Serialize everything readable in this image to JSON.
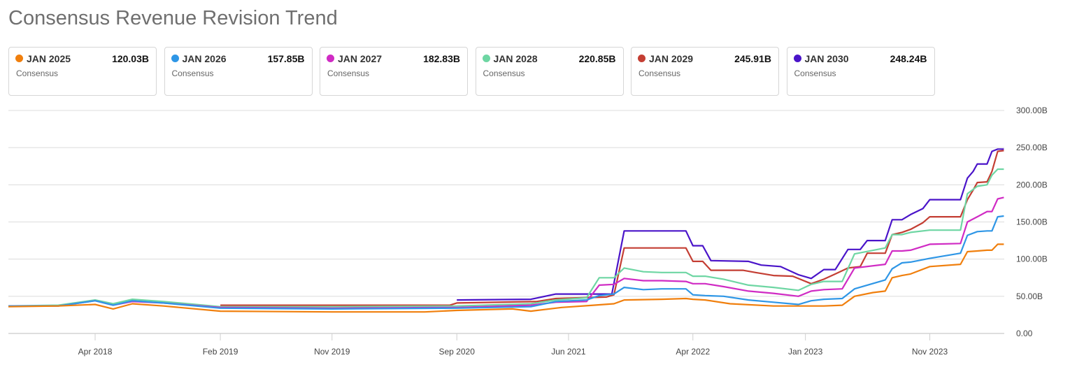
{
  "title": "Consensus Revenue Revision Trend",
  "legend": [
    {
      "name": "JAN 2025",
      "value": "120.03B",
      "sub": "Consensus",
      "color": "#f07f0d"
    },
    {
      "name": "JAN 2026",
      "value": "157.85B",
      "sub": "Consensus",
      "color": "#2e96e6"
    },
    {
      "name": "JAN 2027",
      "value": "182.83B",
      "sub": "Consensus",
      "color": "#d02bc4"
    },
    {
      "name": "JAN 2028",
      "value": "220.85B",
      "sub": "Consensus",
      "color": "#6ed6a3"
    },
    {
      "name": "JAN 2029",
      "value": "245.91B",
      "sub": "Consensus",
      "color": "#c43e33"
    },
    {
      "name": "JAN 2030",
      "value": "248.24B",
      "sub": "Consensus",
      "color": "#4a14c9"
    }
  ],
  "chart_data": {
    "type": "line",
    "title": "Consensus Revenue Revision Trend",
    "xlabel": "",
    "ylabel": "",
    "xlim": [
      "2017-09-01",
      "2024-05-01"
    ],
    "ylim": [
      0,
      300
    ],
    "y_unit": "B",
    "x_ticks": [
      {
        "date": "2018-04-01",
        "label": "Apr 2018"
      },
      {
        "date": "2019-02-01",
        "label": "Feb 2019"
      },
      {
        "date": "2019-11-01",
        "label": "Nov 2019"
      },
      {
        "date": "2020-09-01",
        "label": "Sep 2020"
      },
      {
        "date": "2021-06-01",
        "label": "Jun 2021"
      },
      {
        "date": "2022-04-01",
        "label": "Apr 2022"
      },
      {
        "date": "2023-01-01",
        "label": "Jan 2023"
      },
      {
        "date": "2023-11-01",
        "label": "Nov 2023"
      }
    ],
    "y_ticks": [
      {
        "value": 0,
        "label": "0.00"
      },
      {
        "value": 50,
        "label": "50.00B"
      },
      {
        "value": 100,
        "label": "100.00B"
      },
      {
        "value": 150,
        "label": "150.00B"
      },
      {
        "value": 200,
        "label": "200.00B"
      },
      {
        "value": 250,
        "label": "250.00B"
      },
      {
        "value": 300,
        "label": "300.00B"
      }
    ],
    "grid": true,
    "series": [
      {
        "name": "JAN 2030",
        "color": "#4a14c9",
        "points": [
          [
            "2020-09-01",
            45
          ],
          [
            "2021-03-01",
            46
          ],
          [
            "2021-05-01",
            53
          ],
          [
            "2021-08-01",
            53
          ],
          [
            "2021-09-15",
            53
          ],
          [
            "2021-10-15",
            138
          ],
          [
            "2022-03-15",
            138
          ],
          [
            "2022-04-01",
            118
          ],
          [
            "2022-04-25",
            118
          ],
          [
            "2022-05-15",
            98
          ],
          [
            "2022-08-15",
            97
          ],
          [
            "2022-09-15",
            92
          ],
          [
            "2022-11-01",
            90
          ],
          [
            "2022-12-15",
            79
          ],
          [
            "2023-01-15",
            74
          ],
          [
            "2023-02-15",
            86
          ],
          [
            "2023-03-15",
            86
          ],
          [
            "2023-04-15",
            113
          ],
          [
            "2023-05-15",
            113
          ],
          [
            "2023-06-01",
            125
          ],
          [
            "2023-07-15",
            125
          ],
          [
            "2023-08-01",
            153
          ],
          [
            "2023-08-25",
            153
          ],
          [
            "2023-09-15",
            160
          ],
          [
            "2023-10-15",
            168
          ],
          [
            "2023-11-01",
            180
          ],
          [
            "2024-01-15",
            180
          ],
          [
            "2024-02-01",
            209
          ],
          [
            "2024-02-15",
            218
          ],
          [
            "2024-02-25",
            228
          ],
          [
            "2024-03-20",
            228
          ],
          [
            "2024-04-01",
            245
          ],
          [
            "2024-04-15",
            248
          ],
          [
            "2024-04-30",
            248
          ]
        ]
      },
      {
        "name": "JAN 2029",
        "color": "#c43e33",
        "points": [
          [
            "2019-02-01",
            38
          ],
          [
            "2020-08-15",
            38
          ],
          [
            "2020-09-01",
            41
          ],
          [
            "2021-03-15",
            43
          ],
          [
            "2021-05-01",
            47
          ],
          [
            "2021-09-01",
            49
          ],
          [
            "2021-09-20",
            52
          ],
          [
            "2021-10-15",
            115
          ],
          [
            "2022-03-15",
            115
          ],
          [
            "2022-04-01",
            97
          ],
          [
            "2022-04-25",
            97
          ],
          [
            "2022-05-15",
            85
          ],
          [
            "2022-08-01",
            85
          ],
          [
            "2022-09-01",
            82
          ],
          [
            "2022-10-15",
            78
          ],
          [
            "2022-12-01",
            77
          ],
          [
            "2023-01-15",
            67
          ],
          [
            "2023-02-15",
            73
          ],
          [
            "2023-03-15",
            80
          ],
          [
            "2023-04-15",
            88
          ],
          [
            "2023-05-15",
            90
          ],
          [
            "2023-06-01",
            108
          ],
          [
            "2023-07-15",
            108
          ],
          [
            "2023-08-01",
            133
          ],
          [
            "2023-08-25",
            136
          ],
          [
            "2023-09-15",
            140
          ],
          [
            "2023-10-15",
            149
          ],
          [
            "2023-11-01",
            157
          ],
          [
            "2024-01-15",
            157
          ],
          [
            "2024-02-01",
            180
          ],
          [
            "2024-02-15",
            193
          ],
          [
            "2024-02-25",
            203
          ],
          [
            "2024-03-20",
            204
          ],
          [
            "2024-04-01",
            218
          ],
          [
            "2024-04-15",
            245
          ],
          [
            "2024-04-30",
            246
          ]
        ]
      },
      {
        "name": "JAN 2028",
        "color": "#6ed6a3",
        "points": [
          [
            "2017-09-01",
            37
          ],
          [
            "2018-01-01",
            38
          ],
          [
            "2018-04-01",
            45
          ],
          [
            "2018-05-15",
            40
          ],
          [
            "2018-07-01",
            46
          ],
          [
            "2018-09-15",
            43
          ],
          [
            "2019-02-01",
            36
          ],
          [
            "2019-11-01",
            36
          ],
          [
            "2020-09-01",
            37
          ],
          [
            "2021-03-01",
            40
          ],
          [
            "2021-05-01",
            45
          ],
          [
            "2021-07-15",
            48
          ],
          [
            "2021-08-15",
            75
          ],
          [
            "2021-09-20",
            75
          ],
          [
            "2021-10-15",
            88
          ],
          [
            "2021-12-01",
            83
          ],
          [
            "2022-01-15",
            82
          ],
          [
            "2022-03-15",
            82
          ],
          [
            "2022-04-01",
            77
          ],
          [
            "2022-05-01",
            77
          ],
          [
            "2022-06-15",
            73
          ],
          [
            "2022-08-15",
            65
          ],
          [
            "2022-10-15",
            62
          ],
          [
            "2022-12-15",
            58
          ],
          [
            "2023-01-15",
            66
          ],
          [
            "2023-02-15",
            70
          ],
          [
            "2023-04-01",
            70
          ],
          [
            "2023-05-01",
            107
          ],
          [
            "2023-07-15",
            115
          ],
          [
            "2023-08-01",
            133
          ],
          [
            "2023-08-25",
            133
          ],
          [
            "2023-09-15",
            136
          ],
          [
            "2023-11-01",
            139
          ],
          [
            "2024-01-15",
            139
          ],
          [
            "2024-02-01",
            188
          ],
          [
            "2024-02-25",
            198
          ],
          [
            "2024-03-20",
            200
          ],
          [
            "2024-04-01",
            213
          ],
          [
            "2024-04-15",
            221
          ],
          [
            "2024-04-30",
            221
          ]
        ]
      },
      {
        "name": "JAN 2027",
        "color": "#d02bc4",
        "points": [
          [
            "2017-09-01",
            37
          ],
          [
            "2018-01-01",
            37
          ],
          [
            "2018-04-01",
            44
          ],
          [
            "2018-05-15",
            38
          ],
          [
            "2018-07-01",
            43
          ],
          [
            "2018-09-15",
            41
          ],
          [
            "2019-02-01",
            35
          ],
          [
            "2019-11-01",
            34
          ],
          [
            "2020-09-01",
            35
          ],
          [
            "2021-03-01",
            38
          ],
          [
            "2021-05-01",
            42
          ],
          [
            "2021-07-15",
            43
          ],
          [
            "2021-08-15",
            65
          ],
          [
            "2021-09-20",
            66
          ],
          [
            "2021-10-15",
            74
          ],
          [
            "2021-12-01",
            71
          ],
          [
            "2022-01-15",
            71
          ],
          [
            "2022-03-15",
            70
          ],
          [
            "2022-04-01",
            67
          ],
          [
            "2022-05-01",
            67
          ],
          [
            "2022-06-15",
            63
          ],
          [
            "2022-08-15",
            57
          ],
          [
            "2022-10-15",
            54
          ],
          [
            "2022-12-15",
            50
          ],
          [
            "2023-01-15",
            57
          ],
          [
            "2023-02-15",
            59
          ],
          [
            "2023-04-01",
            60
          ],
          [
            "2023-05-01",
            88
          ],
          [
            "2023-07-15",
            93
          ],
          [
            "2023-08-01",
            111
          ],
          [
            "2023-08-25",
            111
          ],
          [
            "2023-09-15",
            112
          ],
          [
            "2023-11-01",
            120
          ],
          [
            "2024-01-15",
            121
          ],
          [
            "2024-02-01",
            150
          ],
          [
            "2024-02-25",
            157
          ],
          [
            "2024-03-20",
            164
          ],
          [
            "2024-04-01",
            164
          ],
          [
            "2024-04-15",
            181
          ],
          [
            "2024-04-30",
            183
          ]
        ]
      },
      {
        "name": "JAN 2026",
        "color": "#2e96e6",
        "points": [
          [
            "2017-09-01",
            37
          ],
          [
            "2018-01-01",
            37
          ],
          [
            "2018-04-01",
            44
          ],
          [
            "2018-05-15",
            38
          ],
          [
            "2018-07-01",
            44
          ],
          [
            "2018-09-15",
            41
          ],
          [
            "2019-02-01",
            34
          ],
          [
            "2019-11-01",
            33
          ],
          [
            "2020-09-01",
            34
          ],
          [
            "2021-03-01",
            36
          ],
          [
            "2021-05-01",
            43
          ],
          [
            "2021-07-15",
            45
          ],
          [
            "2021-08-15",
            51
          ],
          [
            "2021-09-20",
            53
          ],
          [
            "2021-10-15",
            62
          ],
          [
            "2021-12-01",
            59
          ],
          [
            "2022-01-15",
            60
          ],
          [
            "2022-03-15",
            60
          ],
          [
            "2022-04-01",
            52
          ],
          [
            "2022-05-01",
            51
          ],
          [
            "2022-06-15",
            50
          ],
          [
            "2022-08-15",
            45
          ],
          [
            "2022-10-15",
            42
          ],
          [
            "2022-12-15",
            39
          ],
          [
            "2023-01-15",
            44
          ],
          [
            "2023-02-15",
            46
          ],
          [
            "2023-04-01",
            47
          ],
          [
            "2023-05-01",
            60
          ],
          [
            "2023-07-15",
            72
          ],
          [
            "2023-08-01",
            87
          ],
          [
            "2023-08-25",
            95
          ],
          [
            "2023-09-15",
            96
          ],
          [
            "2023-11-01",
            101
          ],
          [
            "2024-01-15",
            108
          ],
          [
            "2024-02-01",
            132
          ],
          [
            "2024-02-25",
            137
          ],
          [
            "2024-03-20",
            138
          ],
          [
            "2024-04-01",
            138
          ],
          [
            "2024-04-15",
            157
          ],
          [
            "2024-04-30",
            158
          ]
        ]
      },
      {
        "name": "JAN 2025",
        "color": "#f07f0d",
        "points": [
          [
            "2017-09-01",
            36
          ],
          [
            "2018-01-01",
            37
          ],
          [
            "2018-04-01",
            39
          ],
          [
            "2018-05-15",
            33
          ],
          [
            "2018-07-01",
            40
          ],
          [
            "2018-09-15",
            37
          ],
          [
            "2019-02-01",
            30
          ],
          [
            "2019-11-01",
            29
          ],
          [
            "2020-06-15",
            29
          ],
          [
            "2020-09-01",
            31
          ],
          [
            "2021-01-15",
            33
          ],
          [
            "2021-03-01",
            30
          ],
          [
            "2021-05-15",
            35
          ],
          [
            "2021-08-01",
            38
          ],
          [
            "2021-09-20",
            40
          ],
          [
            "2021-10-15",
            45
          ],
          [
            "2022-01-15",
            46
          ],
          [
            "2022-03-15",
            47
          ],
          [
            "2022-04-01",
            46
          ],
          [
            "2022-05-01",
            45
          ],
          [
            "2022-07-01",
            40
          ],
          [
            "2022-10-15",
            37
          ],
          [
            "2022-12-15",
            37
          ],
          [
            "2023-02-15",
            37
          ],
          [
            "2023-04-01",
            38
          ],
          [
            "2023-05-01",
            50
          ],
          [
            "2023-06-15",
            55
          ],
          [
            "2023-07-15",
            57
          ],
          [
            "2023-08-01",
            75
          ],
          [
            "2023-08-25",
            78
          ],
          [
            "2023-09-15",
            80
          ],
          [
            "2023-11-01",
            90
          ],
          [
            "2024-01-15",
            93
          ],
          [
            "2024-02-01",
            110
          ],
          [
            "2024-02-25",
            111
          ],
          [
            "2024-03-20",
            112
          ],
          [
            "2024-04-01",
            112
          ],
          [
            "2024-04-15",
            120
          ],
          [
            "2024-04-30",
            120
          ]
        ]
      }
    ]
  }
}
